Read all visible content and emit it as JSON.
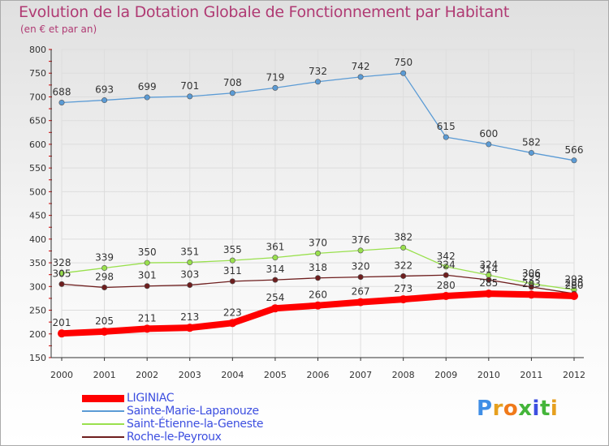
{
  "chart_data": {
    "type": "line",
    "title": "Evolution de la Dotation Globale de Fonctionnement par Habitant",
    "subtitle": "(en € et par an)",
    "xlabel": "",
    "ylabel": "",
    "ylim": [
      150,
      800
    ],
    "y_ticks": [
      150,
      200,
      250,
      300,
      350,
      400,
      450,
      500,
      550,
      600,
      650,
      700,
      750,
      800
    ],
    "categories": [
      "2000",
      "2001",
      "2002",
      "2003",
      "2004",
      "2005",
      "2006",
      "2007",
      "2008",
      "2009",
      "2010",
      "2011",
      "2012"
    ],
    "grid": true,
    "legend_position": "bottom-left",
    "series": [
      {
        "name": "Sainte-Marie-Lapanouze",
        "color": "#5b9bd5",
        "values": [
          688,
          693,
          699,
          701,
          708,
          719,
          732,
          742,
          750,
          615,
          600,
          582,
          566
        ]
      },
      {
        "name": "Saint-Étienne-la-Geneste",
        "color": "#99e04d",
        "values": [
          328,
          339,
          350,
          351,
          355,
          361,
          370,
          376,
          382,
          342,
          324,
          306,
          293
        ]
      },
      {
        "name": "Roche-le-Peyroux",
        "color": "#6e1e1e",
        "values": [
          305,
          298,
          301,
          303,
          311,
          314,
          318,
          320,
          322,
          324,
          314,
          299,
          285
        ]
      },
      {
        "name": "LIGINIAC",
        "color": "#ff0000",
        "values": [
          201,
          205,
          211,
          213,
          223,
          254,
          260,
          267,
          273,
          280,
          285,
          283,
          280
        ]
      }
    ]
  },
  "legend": {
    "items": [
      {
        "label": "LIGINIAC",
        "color": "#ff0000"
      },
      {
        "label": "Sainte-Marie-Lapanouze",
        "color": "#5b9bd5"
      },
      {
        "label": "Saint-Étienne-la-Geneste",
        "color": "#99e04d"
      },
      {
        "label": "Roche-le-Peyroux",
        "color": "#6e1e1e"
      }
    ]
  },
  "logo": {
    "text": "Proxiti",
    "colors": [
      "#3f8ee6",
      "#e6a01f",
      "#f07a1a",
      "#44b53a",
      "#3d4fe0",
      "#44b53a",
      "#e6a01f"
    ]
  }
}
